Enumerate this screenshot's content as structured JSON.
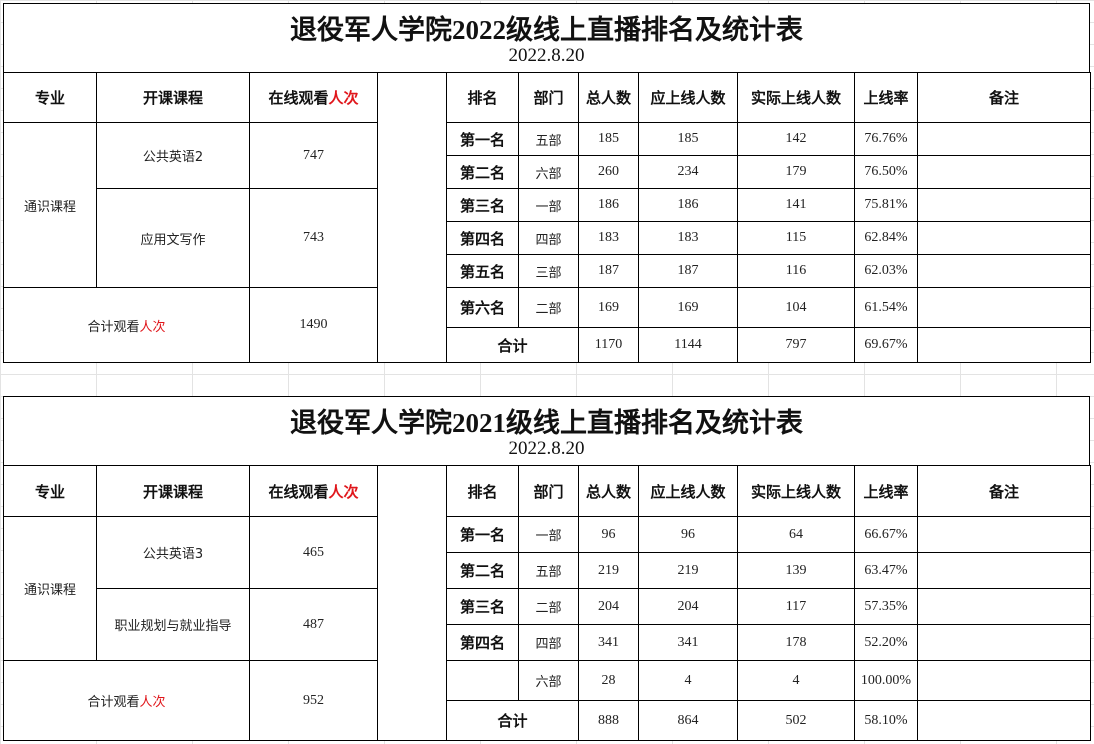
{
  "tables": [
    {
      "title": "退役军人学院2022级线上直播排名及统计表",
      "date": "2022.8.20",
      "left": {
        "headers": [
          "专业",
          "开课课程",
          "在线观看"
        ],
        "header_red": "人次",
        "major": "通识课程",
        "courses": [
          {
            "name": "公共英语2",
            "views": "747"
          },
          {
            "name": "应用文写作",
            "views": "743"
          }
        ],
        "total_label": "合计观看",
        "total_label_red": "人次",
        "total": "1490"
      },
      "right": {
        "headers": [
          "排名",
          "部门",
          "总人数",
          "应上线人数",
          "实际上线人数",
          "上线率",
          "备注"
        ],
        "rows": [
          {
            "rank": "第一名",
            "dept": "五部",
            "total": "185",
            "expected": "185",
            "actual": "142",
            "rate": "76.76%",
            "note": ""
          },
          {
            "rank": "第二名",
            "dept": "六部",
            "total": "260",
            "expected": "234",
            "actual": "179",
            "rate": "76.50%",
            "note": ""
          },
          {
            "rank": "第三名",
            "dept": "一部",
            "total": "186",
            "expected": "186",
            "actual": "141",
            "rate": "75.81%",
            "note": ""
          },
          {
            "rank": "第四名",
            "dept": "四部",
            "total": "183",
            "expected": "183",
            "actual": "115",
            "rate": "62.84%",
            "note": ""
          },
          {
            "rank": "第五名",
            "dept": "三部",
            "total": "187",
            "expected": "187",
            "actual": "116",
            "rate": "62.03%",
            "note": ""
          },
          {
            "rank": "第六名",
            "dept": "二部",
            "total": "169",
            "expected": "169",
            "actual": "104",
            "rate": "61.54%",
            "note": ""
          }
        ],
        "sum": {
          "label": "合计",
          "total": "1170",
          "expected": "1144",
          "actual": "797",
          "rate": "69.67%",
          "note": ""
        }
      }
    },
    {
      "title": "退役军人学院2021级线上直播排名及统计表",
      "date": "2022.8.20",
      "left": {
        "headers": [
          "专业",
          "开课课程",
          "在线观看"
        ],
        "header_red": "人次",
        "major": "通识课程",
        "courses": [
          {
            "name": "公共英语3",
            "views": "465"
          },
          {
            "name": "职业规划与就业指导",
            "views": "487"
          }
        ],
        "total_label": "合计观看",
        "total_label_red": "人次",
        "total": "952"
      },
      "right": {
        "headers": [
          "排名",
          "部门",
          "总人数",
          "应上线人数",
          "实际上线人数",
          "上线率",
          "备注"
        ],
        "rows": [
          {
            "rank": "第一名",
            "dept": "一部",
            "total": "96",
            "expected": "96",
            "actual": "64",
            "rate": "66.67%",
            "note": ""
          },
          {
            "rank": "第二名",
            "dept": "五部",
            "total": "219",
            "expected": "219",
            "actual": "139",
            "rate": "63.47%",
            "note": ""
          },
          {
            "rank": "第三名",
            "dept": "二部",
            "total": "204",
            "expected": "204",
            "actual": "117",
            "rate": "57.35%",
            "note": ""
          },
          {
            "rank": "第四名",
            "dept": "四部",
            "total": "341",
            "expected": "341",
            "actual": "178",
            "rate": "52.20%",
            "note": ""
          },
          {
            "rank": "",
            "dept": "六部",
            "total": "28",
            "expected": "4",
            "actual": "4",
            "rate": "100.00%",
            "note": ""
          }
        ],
        "sum": {
          "label": "合计",
          "total": "888",
          "expected": "864",
          "actual": "502",
          "rate": "58.10%",
          "note": ""
        }
      }
    }
  ]
}
